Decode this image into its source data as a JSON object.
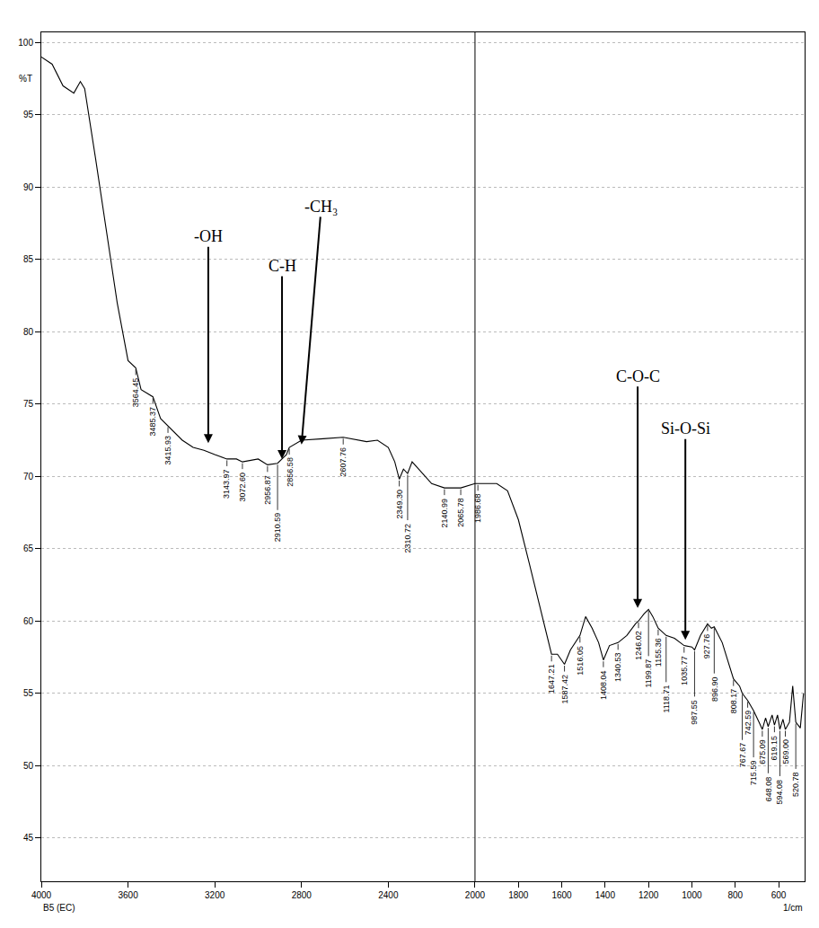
{
  "chart_data": {
    "type": "line",
    "x_label": "1/cm",
    "y_label": "%T",
    "sample_label": "B5 (EC)",
    "color": "#000000",
    "x": [
      4000,
      3950,
      3900,
      3850,
      3820,
      3800,
      3750,
      3700,
      3650,
      3600,
      3564.45,
      3540,
      3485.37,
      3450,
      3415.93,
      3350,
      3300,
      3250,
      3200,
      3143.97,
      3100,
      3072.6,
      3000,
      2956.87,
      2910.59,
      2870,
      2856.58,
      2800,
      2700,
      2607.76,
      2500,
      2450,
      2400,
      2370,
      2349.3,
      2330,
      2310.72,
      2290,
      2260,
      2200,
      2140.99,
      2065.78,
      2000,
      1986.68,
      1900,
      1850,
      1800,
      1750,
      1700,
      1660,
      1647.21,
      1620,
      1587.42,
      1560,
      1516.05,
      1490,
      1460,
      1430,
      1408.04,
      1380,
      1340.53,
      1300,
      1260,
      1246.02,
      1220,
      1199.87,
      1180,
      1155.36,
      1118.71,
      1080,
      1035.77,
      1000,
      987.55,
      960,
      927.76,
      910,
      896.9,
      860,
      820,
      808.17,
      780,
      767.67,
      742.59,
      715.59,
      690,
      675.09,
      660,
      648.08,
      630,
      619.15,
      605,
      594.08,
      580,
      569.0,
      550,
      535,
      520.78,
      500,
      485
    ],
    "values": [
      99,
      98.5,
      97,
      96.5,
      97.3,
      96.8,
      92,
      87,
      82,
      78,
      77.5,
      76,
      75.5,
      74,
      73.5,
      72.5,
      72,
      71.8,
      71.5,
      71.2,
      71.2,
      71,
      71.2,
      70.8,
      70.9,
      71.5,
      72,
      72.5,
      72.6,
      72.7,
      72.4,
      72.5,
      72,
      71,
      69.8,
      70.5,
      70.2,
      71,
      70.5,
      69.5,
      69.2,
      69.2,
      69.5,
      69.5,
      69.5,
      69,
      67,
      64,
      61,
      58.5,
      57.7,
      57.7,
      57,
      58,
      59,
      60.3,
      59.5,
      58.5,
      57.3,
      58.3,
      58.5,
      59,
      59.8,
      60,
      60.5,
      60.8,
      60.3,
      59.5,
      59,
      58.8,
      58.3,
      58.2,
      58,
      59,
      59.8,
      59.5,
      59.6,
      58.5,
      56.5,
      56,
      55.5,
      55,
      54.5,
      53.8,
      53,
      52.5,
      53.3,
      52.7,
      53.5,
      52.8,
      53.5,
      52.5,
      53.2,
      52.5,
      53,
      55.5,
      53,
      52.6,
      55
    ],
    "xlim": [
      4000,
      480
    ],
    "xticks": [
      4000,
      3600,
      3200,
      2800,
      2400,
      2000,
      1800,
      1600,
      1400,
      1200,
      1000,
      800,
      600
    ],
    "ylim": [
      42,
      100.7
    ],
    "yticks": [
      45,
      50,
      55,
      60,
      65,
      70,
      75,
      80,
      85,
      90,
      95,
      100
    ],
    "grid": "y",
    "vlines": [
      2000
    ],
    "peaks": [
      {
        "x": 3564.45,
        "label": "3564.45"
      },
      {
        "x": 3485.37,
        "label": "3485.37"
      },
      {
        "x": 3415.93,
        "label": "3415.93"
      },
      {
        "x": 3143.97,
        "label": "3143.97"
      },
      {
        "x": 3072.6,
        "label": "3072.60"
      },
      {
        "x": 2956.87,
        "label": "2956.87"
      },
      {
        "x": 2910.59,
        "label": "2910.59"
      },
      {
        "x": 2856.58,
        "label": "2856.58"
      },
      {
        "x": 2607.76,
        "label": "2607.76"
      },
      {
        "x": 2349.3,
        "label": "2349.30"
      },
      {
        "x": 2310.72,
        "label": "2310.72"
      },
      {
        "x": 2140.99,
        "label": "2140.99"
      },
      {
        "x": 2065.78,
        "label": "2065.78"
      },
      {
        "x": 1986.68,
        "label": "1986.68"
      },
      {
        "x": 1647.21,
        "label": "1647.21"
      },
      {
        "x": 1587.42,
        "label": "1587.42"
      },
      {
        "x": 1516.05,
        "label": "1516.05"
      },
      {
        "x": 1408.04,
        "label": "1408.04"
      },
      {
        "x": 1340.53,
        "label": "1340.53"
      },
      {
        "x": 1246.02,
        "label": "1246.02"
      },
      {
        "x": 1199.87,
        "label": "1199.87"
      },
      {
        "x": 1155.36,
        "label": "1155.36"
      },
      {
        "x": 1118.71,
        "label": "1118.71"
      },
      {
        "x": 1035.77,
        "label": "1035.77"
      },
      {
        "x": 987.55,
        "label": "987.55"
      },
      {
        "x": 927.76,
        "label": "927.76"
      },
      {
        "x": 896.9,
        "label": "896.90"
      },
      {
        "x": 808.17,
        "label": "808.17"
      },
      {
        "x": 767.67,
        "label": "767.67"
      },
      {
        "x": 742.59,
        "label": "742.59"
      },
      {
        "x": 715.59,
        "label": "715.59"
      },
      {
        "x": 675.09,
        "label": "675.09"
      },
      {
        "x": 648.08,
        "label": "648.08"
      },
      {
        "x": 619.15,
        "label": "619.15"
      },
      {
        "x": 594.08,
        "label": "594.08"
      },
      {
        "x": 569.0,
        "label": "569.00"
      },
      {
        "x": 520.78,
        "label": "520.78"
      }
    ],
    "annotations": [
      {
        "text": "-OH",
        "x": 3230,
        "y": 72.3
      },
      {
        "text": "C-H",
        "x": 2890,
        "y": 71.2
      },
      {
        "text": "-CH₃",
        "x": 2800,
        "y": 72.2
      },
      {
        "text": "C-O-C",
        "x": 1250,
        "y": 60.9
      },
      {
        "text": "Si-O-Si",
        "x": 1030,
        "y": 58.7
      }
    ]
  }
}
